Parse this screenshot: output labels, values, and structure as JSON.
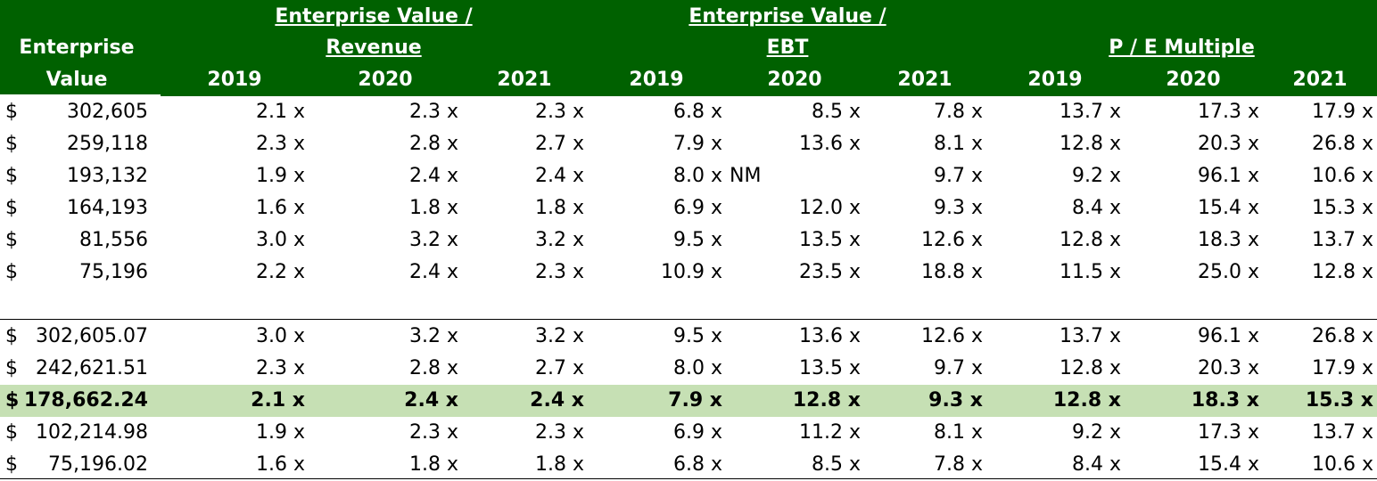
{
  "header": {
    "ev_line1": "Enterprise",
    "ev_line2": "Value",
    "group_rev_line1": "Enterprise Value /",
    "group_rev_line2": "Revenue",
    "group_ebt_line1": "Enterprise Value /",
    "group_ebt_line2": "EBT",
    "group_pe": "P / E Multiple",
    "years": [
      "2019",
      "2020",
      "2021",
      "2019",
      "2020",
      "2021",
      "2019",
      "2020",
      "2021"
    ]
  },
  "companies": [
    {
      "dollar": "$",
      "ev": "302,605",
      "v": [
        "2.1 x",
        "2.3 x",
        "2.3 x",
        "6.8 x",
        "8.5 x",
        "7.8 x",
        "13.7 x",
        "17.3 x",
        "17.9 x"
      ]
    },
    {
      "dollar": "$",
      "ev": "259,118",
      "v": [
        "2.3 x",
        "2.8 x",
        "2.7 x",
        "7.9 x",
        "13.6 x",
        "8.1 x",
        "12.8 x",
        "20.3 x",
        "26.8 x"
      ]
    },
    {
      "dollar": "$",
      "ev": "193,132",
      "v": [
        "1.9 x",
        "2.4 x",
        "2.4 x",
        "8.0 x",
        "",
        "9.7 x",
        "9.2 x",
        "96.1 x",
        "10.6 x"
      ],
      "note": "NM"
    },
    {
      "dollar": "$",
      "ev": "164,193",
      "v": [
        "1.6 x",
        "1.8 x",
        "1.8 x",
        "6.9 x",
        "12.0 x",
        "9.3 x",
        "8.4 x",
        "15.4 x",
        "15.3 x"
      ]
    },
    {
      "dollar": "$",
      "ev": "81,556",
      "v": [
        "3.0 x",
        "3.2 x",
        "3.2 x",
        "9.5 x",
        "13.5 x",
        "12.6 x",
        "12.8 x",
        "18.3 x",
        "13.7 x"
      ]
    },
    {
      "dollar": "$",
      "ev": "75,196",
      "v": [
        "2.2 x",
        "2.4 x",
        "2.3 x",
        "10.9 x",
        "23.5 x",
        "18.8 x",
        "11.5 x",
        "25.0 x",
        "12.8 x"
      ]
    }
  ],
  "stats": [
    {
      "dollar": "$",
      "ev": "302,605.07",
      "v": [
        "3.0 x",
        "3.2 x",
        "3.2 x",
        "9.5 x",
        "13.6 x",
        "12.6 x",
        "13.7 x",
        "96.1 x",
        "26.8 x"
      ]
    },
    {
      "dollar": "$",
      "ev": "242,621.51",
      "v": [
        "2.3 x",
        "2.8 x",
        "2.7 x",
        "8.0 x",
        "13.5 x",
        "9.7 x",
        "12.8 x",
        "20.3 x",
        "17.9 x"
      ]
    },
    {
      "dollar": "$",
      "ev": "178,662.24",
      "v": [
        "2.1 x",
        "2.4 x",
        "2.4 x",
        "7.9 x",
        "12.8 x",
        "9.3 x",
        "12.8 x",
        "18.3 x",
        "15.3 x"
      ],
      "highlight": true
    },
    {
      "dollar": "$",
      "ev": "102,214.98",
      "v": [
        "1.9 x",
        "2.3 x",
        "2.3 x",
        "6.9 x",
        "11.2 x",
        "8.1 x",
        "9.2 x",
        "17.3 x",
        "13.7 x"
      ]
    },
    {
      "dollar": "$",
      "ev": "75,196.02",
      "v": [
        "1.6 x",
        "1.8 x",
        "1.8 x",
        "6.8 x",
        "8.5 x",
        "7.8 x",
        "8.4 x",
        "15.4 x",
        "10.6 x"
      ]
    }
  ],
  "colors": {
    "header_bg": "#006100",
    "highlight_bg": "#c6e0b4"
  }
}
